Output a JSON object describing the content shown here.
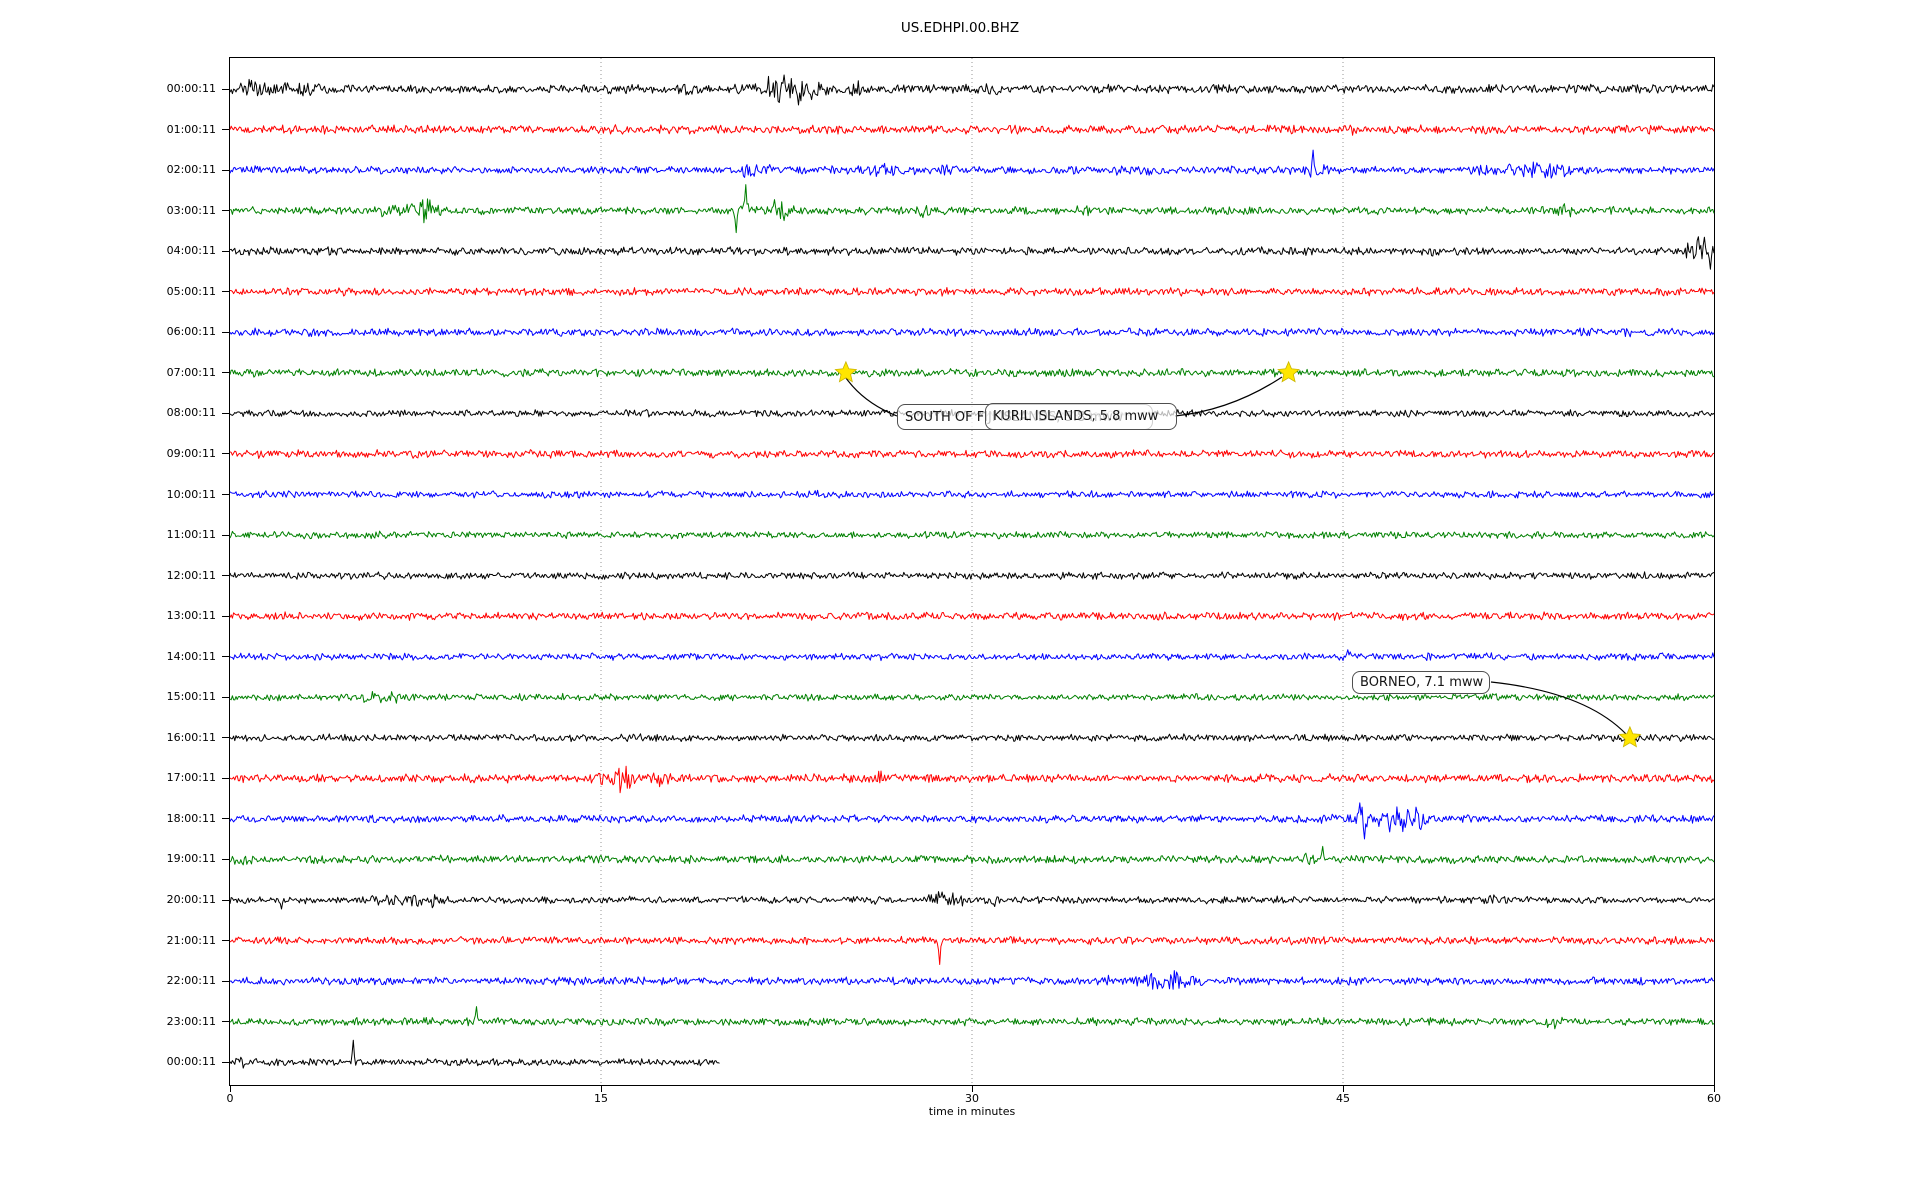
{
  "title": "US.EDHPI.00.BHZ",
  "chart_data": {
    "type": "line",
    "chart_kind": "seismogram_dayplot",
    "station_id": "US.EDHPI.00.BHZ",
    "xlabel": "time in minutes",
    "xlim": [
      0,
      60
    ],
    "x_ticks": [
      0,
      15,
      30,
      45,
      60
    ],
    "x_gridlines": [
      15,
      30,
      45
    ],
    "grid_style": "dotted",
    "minutes_per_row": 60,
    "color_cycle": [
      "#000000",
      "#ff0000",
      "#0000ff",
      "#008000"
    ],
    "y_tick_labels": [
      "00:00:11",
      "01:00:11",
      "02:00:11",
      "03:00:11",
      "04:00:11",
      "05:00:11",
      "06:00:11",
      "07:00:11",
      "08:00:11",
      "09:00:11",
      "10:00:11",
      "11:00:11",
      "12:00:11",
      "13:00:11",
      "14:00:11",
      "15:00:11",
      "16:00:11",
      "17:00:11",
      "18:00:11",
      "19:00:11",
      "20:00:11",
      "21:00:11",
      "22:00:11",
      "23:00:11",
      "00:00:11"
    ],
    "traces": [
      {
        "label": "00:00:11",
        "color": "#000000",
        "base": 5.0,
        "bursts": [
          [
            0.7,
            0.6,
            5
          ],
          [
            1.8,
            0.9,
            5
          ],
          [
            3.0,
            0.6,
            3
          ],
          [
            18.5,
            0.5,
            3
          ],
          [
            21.5,
            0.8,
            7
          ],
          [
            22.8,
            0.9,
            10
          ],
          [
            23.5,
            0.5,
            8
          ],
          [
            25.3,
            0.4,
            4
          ],
          [
            30.6,
            0.5,
            3
          ],
          [
            55.2,
            0.5,
            3
          ]
        ],
        "spikes": [
          [
            23.0,
            -16
          ],
          [
            22.4,
            14
          ]
        ]
      },
      {
        "label": "01:00:11",
        "color": "#ff0000",
        "base": 5.0,
        "bursts": [
          [
            45.5,
            0.15,
            4
          ]
        ],
        "spikes": []
      },
      {
        "label": "02:00:11",
        "color": "#0000ff",
        "base": 4.5,
        "bursts": [
          [
            21.0,
            0.5,
            4
          ],
          [
            21.9,
            0.6,
            4
          ],
          [
            26.5,
            1.0,
            3
          ],
          [
            28.8,
            0.4,
            3
          ],
          [
            36.5,
            0.8,
            3
          ],
          [
            43.9,
            0.6,
            5
          ],
          [
            52.0,
            1.2,
            4
          ],
          [
            53.5,
            0.8,
            4
          ]
        ],
        "spikes": [
          [
            43.8,
            20
          ]
        ]
      },
      {
        "label": "03:00:11",
        "color": "#008000",
        "base": 4.5,
        "bursts": [
          [
            6.4,
            0.4,
            3
          ],
          [
            7.6,
            0.5,
            7
          ],
          [
            8.1,
            0.35,
            8
          ],
          [
            20.8,
            0.3,
            5
          ],
          [
            22.2,
            0.5,
            6
          ],
          [
            28.1,
            0.3,
            3
          ],
          [
            34.6,
            0.3,
            4
          ],
          [
            54.0,
            0.4,
            3
          ]
        ],
        "spikes": [
          [
            20.45,
            -22
          ],
          [
            20.85,
            26
          ],
          [
            22.0,
            11
          ],
          [
            22.4,
            -10
          ],
          [
            28.0,
            -7
          ]
        ]
      },
      {
        "label": "04:00:11",
        "color": "#000000",
        "base": 4.5,
        "bursts": [
          [
            1.0,
            0.8,
            2
          ],
          [
            43.5,
            0.2,
            3
          ],
          [
            48.8,
            0.25,
            4
          ],
          [
            59.2,
            0.5,
            8
          ],
          [
            59.7,
            0.3,
            12
          ]
        ],
        "spikes": [
          [
            59.6,
            14
          ],
          [
            59.85,
            -18
          ]
        ]
      },
      {
        "label": "05:00:11",
        "color": "#ff0000",
        "base": 4.5,
        "bursts": [],
        "spikes": []
      },
      {
        "label": "06:00:11",
        "color": "#0000ff",
        "base": 4.5,
        "bursts": [
          [
            56.8,
            0.6,
            3
          ]
        ],
        "spikes": []
      },
      {
        "label": "07:00:11",
        "color": "#008000",
        "base": 4.5,
        "bursts": [],
        "spikes": []
      },
      {
        "label": "08:00:11",
        "color": "#000000",
        "base": 4.0,
        "bursts": [],
        "spikes": []
      },
      {
        "label": "09:00:11",
        "color": "#ff0000",
        "base": 4.5,
        "bursts": [],
        "spikes": []
      },
      {
        "label": "10:00:11",
        "color": "#0000ff",
        "base": 4.0,
        "bursts": [
          [
            23.5,
            0.3,
            2
          ]
        ],
        "spikes": []
      },
      {
        "label": "11:00:11",
        "color": "#008000",
        "base": 4.0,
        "bursts": [],
        "spikes": []
      },
      {
        "label": "12:00:11",
        "color": "#000000",
        "base": 4.0,
        "bursts": [],
        "spikes": []
      },
      {
        "label": "13:00:11",
        "color": "#ff0000",
        "base": 4.5,
        "bursts": [],
        "spikes": []
      },
      {
        "label": "14:00:11",
        "color": "#0000ff",
        "base": 4.0,
        "bursts": [
          [
            45.2,
            0.25,
            4
          ]
        ],
        "spikes": [
          [
            45.2,
            7
          ]
        ]
      },
      {
        "label": "15:00:11",
        "color": "#008000",
        "base": 4.0,
        "bursts": [
          [
            5.6,
            0.3,
            3
          ],
          [
            6.3,
            0.45,
            5
          ]
        ],
        "spikes": []
      },
      {
        "label": "16:00:11",
        "color": "#000000",
        "base": 4.0,
        "bursts": [],
        "spikes": []
      },
      {
        "label": "17:00:11",
        "color": "#ff0000",
        "base": 5.0,
        "bursts": [
          [
            15.5,
            0.45,
            9
          ],
          [
            16.0,
            0.35,
            8
          ],
          [
            17.5,
            0.4,
            6
          ],
          [
            26.3,
            0.25,
            5
          ]
        ],
        "spikes": []
      },
      {
        "label": "18:00:11",
        "color": "#0000ff",
        "base": 4.5,
        "bursts": [
          [
            44.3,
            0.3,
            5
          ],
          [
            45.8,
            0.35,
            11
          ],
          [
            46.8,
            0.4,
            9
          ],
          [
            47.6,
            0.5,
            11
          ],
          [
            48.3,
            0.3,
            7
          ]
        ],
        "spikes": [
          [
            45.7,
            16
          ],
          [
            45.85,
            -20
          ],
          [
            46.9,
            -13
          ]
        ]
      },
      {
        "label": "19:00:11",
        "color": "#008000",
        "base": 4.5,
        "bursts": [
          [
            0.6,
            0.6,
            2
          ],
          [
            43.6,
            0.25,
            4
          ]
        ],
        "spikes": [
          [
            44.2,
            13
          ]
        ]
      },
      {
        "label": "20:00:11",
        "color": "#000000",
        "base": 4.0,
        "bursts": [
          [
            6.3,
            0.5,
            5
          ],
          [
            7.3,
            0.6,
            6
          ],
          [
            8.3,
            0.35,
            4
          ],
          [
            25.9,
            0.25,
            3
          ],
          [
            28.7,
            0.4,
            7
          ],
          [
            29.4,
            0.35,
            6
          ],
          [
            30.9,
            0.35,
            5
          ],
          [
            51.0,
            0.25,
            4
          ]
        ],
        "spikes": [
          [
            2.1,
            -9
          ],
          [
            28.8,
            8
          ]
        ]
      },
      {
        "label": "21:00:11",
        "color": "#ff0000",
        "base": 4.5,
        "bursts": [],
        "spikes": [
          [
            28.7,
            -24
          ]
        ]
      },
      {
        "label": "22:00:11",
        "color": "#0000ff",
        "base": 4.5,
        "bursts": [
          [
            35.6,
            0.25,
            3
          ],
          [
            37.3,
            0.5,
            9
          ],
          [
            38.2,
            0.4,
            8
          ],
          [
            39.0,
            0.25,
            5
          ]
        ],
        "spikes": []
      },
      {
        "label": "23:00:11",
        "color": "#008000",
        "base": 4.5,
        "bursts": [
          [
            53.4,
            0.35,
            4
          ]
        ],
        "spikes": [
          [
            9.95,
            15
          ]
        ]
      },
      {
        "label": "00:00:11",
        "color": "#000000",
        "base": 4.0,
        "end_minute": 19.8,
        "bursts": [
          [
            0.4,
            0.3,
            3
          ]
        ],
        "spikes": [
          [
            5.0,
            22
          ]
        ]
      }
    ],
    "event_annotations": [
      {
        "id": "fiji",
        "text": "SOUTH OF FIJI ISLANDS, 5.8 mww",
        "visible_text": "SOUTH OF F",
        "occluded": true,
        "star_trace_index": 7,
        "star_minute": 24.9
      },
      {
        "id": "kuril",
        "text": "KURIL ISLANDS, 5.8 mww",
        "visible_text": "KURIL ISLANDS, 5.8 mww",
        "occluded": false,
        "star_trace_index": 7,
        "star_minute": 42.8
      },
      {
        "id": "borneo",
        "text": "BORNEO, 7.1 mww",
        "visible_text": "BORNEO, 7.1 mww",
        "occluded": false,
        "star_trace_index": 16,
        "star_minute": 56.6
      }
    ],
    "marker": {
      "shape": "star",
      "color": "#ffe600"
    }
  }
}
